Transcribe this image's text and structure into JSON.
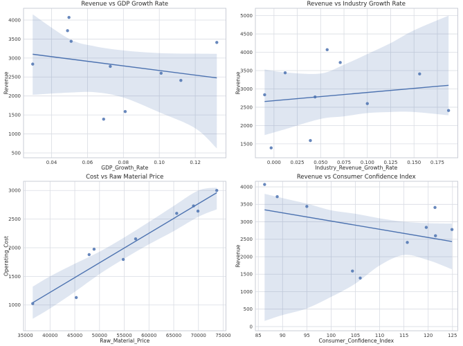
{
  "figure": {
    "background": "#ffffff",
    "accent_color": "#4c72b0",
    "band_color_rgba": "rgba(76,114,176,0.18)",
    "grid_color": "#d9dce3",
    "spine_color": "#c9ccd6",
    "text_color": "#262626"
  },
  "chart_data": [
    {
      "type": "scatter",
      "title": "Revenue vs GDP Growth Rate",
      "xlabel": "GDP_Growth_Rate",
      "ylabel": "Revenue",
      "grid": true,
      "legend": null,
      "xlim": [
        0.0244,
        0.1371
      ],
      "ylim": [
        372,
        4310
      ],
      "xticks": [
        0.04,
        0.06,
        0.08,
        0.1,
        0.12
      ],
      "xtick_labels": [
        "0.04",
        "0.06",
        "0.08",
        "0.10",
        "0.12"
      ],
      "yticks": [
        500,
        1000,
        1500,
        2000,
        2500,
        3000,
        3500,
        4000
      ],
      "ytick_labels": [
        "500",
        "1000",
        "1500",
        "2000",
        "2500",
        "3000",
        "3500",
        "4000"
      ],
      "points": [
        [
          0.0295,
          2840
        ],
        [
          0.0497,
          4070
        ],
        [
          0.0489,
          3720
        ],
        [
          0.0509,
          3440
        ],
        [
          0.0727,
          2780
        ],
        [
          0.069,
          1390
        ],
        [
          0.081,
          1590
        ],
        [
          0.101,
          2600
        ],
        [
          0.112,
          2410
        ],
        [
          0.132,
          3410
        ]
      ],
      "regression_line": {
        "x": [
          0.0295,
          0.132
        ],
        "y": [
          3100,
          2476
        ]
      },
      "confidence_band": {
        "x": [
          0.0295,
          0.05,
          0.064,
          0.08,
          0.1,
          0.12,
          0.132
        ],
        "upper": [
          4150,
          3500,
          3310,
          3200,
          3130,
          3115,
          3110
        ],
        "lower": [
          2030,
          2090,
          2100,
          1960,
          1570,
          1150,
          620
        ]
      }
    },
    {
      "type": "scatter",
      "title": "Revenue vs Industry Growth Rate",
      "xlabel": "Industry_Revenue_Growth_Rate",
      "ylabel": "Revenue",
      "grid": true,
      "legend": null,
      "xlim": [
        -0.0199,
        0.1969
      ],
      "ylim": [
        1120,
        5200
      ],
      "xticks": [
        0.0,
        0.025,
        0.05,
        0.075,
        0.1,
        0.125,
        0.15,
        0.175
      ],
      "xtick_labels": [
        "0.000",
        "0.025",
        "0.050",
        "0.075",
        "0.100",
        "0.125",
        "0.150",
        "0.175"
      ],
      "yticks": [
        1500,
        2000,
        2500,
        3000,
        3500,
        4000,
        4500,
        5000
      ],
      "ytick_labels": [
        "1500",
        "2000",
        "2500",
        "3000",
        "3500",
        "4000",
        "4500",
        "5000"
      ],
      "points": [
        [
          -0.01,
          2840
        ],
        [
          -0.003,
          1390
        ],
        [
          0.012,
          3440
        ],
        [
          0.039,
          1590
        ],
        [
          0.044,
          2780
        ],
        [
          0.057,
          4070
        ],
        [
          0.071,
          3720
        ],
        [
          0.1,
          2600
        ],
        [
          0.156,
          3410
        ],
        [
          0.187,
          2410
        ]
      ],
      "regression_line": {
        "x": [
          -0.01,
          0.187
        ],
        "y": [
          2656,
          3098
        ]
      },
      "confidence_band": {
        "x": [
          -0.01,
          0.012,
          0.05,
          0.075,
          0.1,
          0.125,
          0.15,
          0.187
        ],
        "upper": [
          3530,
          3450,
          3420,
          3660,
          3950,
          4250,
          4600,
          5000
        ],
        "lower": [
          1740,
          1900,
          2180,
          2250,
          2340,
          2370,
          2370,
          2280
        ]
      }
    },
    {
      "type": "scatter",
      "title": "Cost vs Raw Material Price",
      "xlabel": "Raw_Material_Price",
      "ylabel": "Operating_Cost",
      "grid": true,
      "legend": null,
      "xlim": [
        34640,
        75560
      ],
      "ylim": [
        550,
        3160
      ],
      "xticks": [
        35000,
        40000,
        45000,
        50000,
        55000,
        60000,
        65000,
        70000,
        75000
      ],
      "xtick_labels": [
        "35000",
        "40000",
        "45000",
        "50000",
        "55000",
        "60000",
        "65000",
        "70000",
        "75000"
      ],
      "yticks": [
        1000,
        1500,
        2000,
        2500,
        3000
      ],
      "ytick_labels": [
        "1000",
        "1500",
        "2000",
        "2500",
        "3000"
      ],
      "points": [
        [
          36500,
          1025
        ],
        [
          45300,
          1130
        ],
        [
          47900,
          1880
        ],
        [
          48900,
          1975
        ],
        [
          54800,
          1795
        ],
        [
          57300,
          2155
        ],
        [
          65600,
          2600
        ],
        [
          69000,
          2730
        ],
        [
          69900,
          2640
        ],
        [
          73700,
          3000
        ]
      ],
      "regression_line": {
        "x": [
          36500,
          73700
        ],
        "y": [
          1040,
          2961
        ]
      },
      "confidence_band": {
        "x": [
          36500,
          40000,
          45000,
          50000,
          55000,
          60000,
          65000,
          70000,
          73700
        ],
        "upper": [
          1320,
          1500,
          1720,
          1930,
          2180,
          2450,
          2730,
          3000,
          3050
        ],
        "lower": [
          760,
          940,
          1230,
          1540,
          1810,
          2060,
          2290,
          2540,
          2670
        ]
      }
    },
    {
      "type": "scatter",
      "title": "Revenue vs Consumer Confidence Index",
      "xlabel": "Consumer_Confidence_Index",
      "ylabel": "Revenue",
      "grid": true,
      "legend": null,
      "xlim": [
        84.4,
        126.1
      ],
      "ylim": [
        -120,
        4160
      ],
      "xticks": [
        85,
        90,
        95,
        100,
        105,
        110,
        115,
        120,
        125
      ],
      "xtick_labels": [
        "85",
        "90",
        "95",
        "100",
        "105",
        "110",
        "115",
        "120",
        "125"
      ],
      "yticks": [
        0,
        500,
        1000,
        1500,
        2000,
        2500,
        3000,
        3500,
        4000
      ],
      "ytick_labels": [
        "0",
        "500",
        "1000",
        "1500",
        "2000",
        "2500",
        "3000",
        "3500",
        "4000"
      ],
      "points": [
        [
          86.3,
          4070
        ],
        [
          88.9,
          3720
        ],
        [
          95.0,
          3440
        ],
        [
          104.4,
          1590
        ],
        [
          106.0,
          1390
        ],
        [
          115.7,
          2410
        ],
        [
          119.6,
          2840
        ],
        [
          121.4,
          3410
        ],
        [
          121.5,
          2600
        ],
        [
          124.9,
          2780
        ]
      ],
      "regression_line": {
        "x": [
          86.3,
          124.9
        ],
        "y": [
          3344,
          2436
        ]
      },
      "confidence_band": {
        "x": [
          86.3,
          90,
          95,
          100,
          105,
          110,
          115,
          120,
          124.9
        ],
        "upper": [
          3800,
          3680,
          3520,
          3330,
          3230,
          3100,
          3000,
          2960,
          2950
        ],
        "lower": [
          160,
          330,
          520,
          850,
          1230,
          1750,
          2050,
          1900,
          1640
        ]
      }
    }
  ]
}
